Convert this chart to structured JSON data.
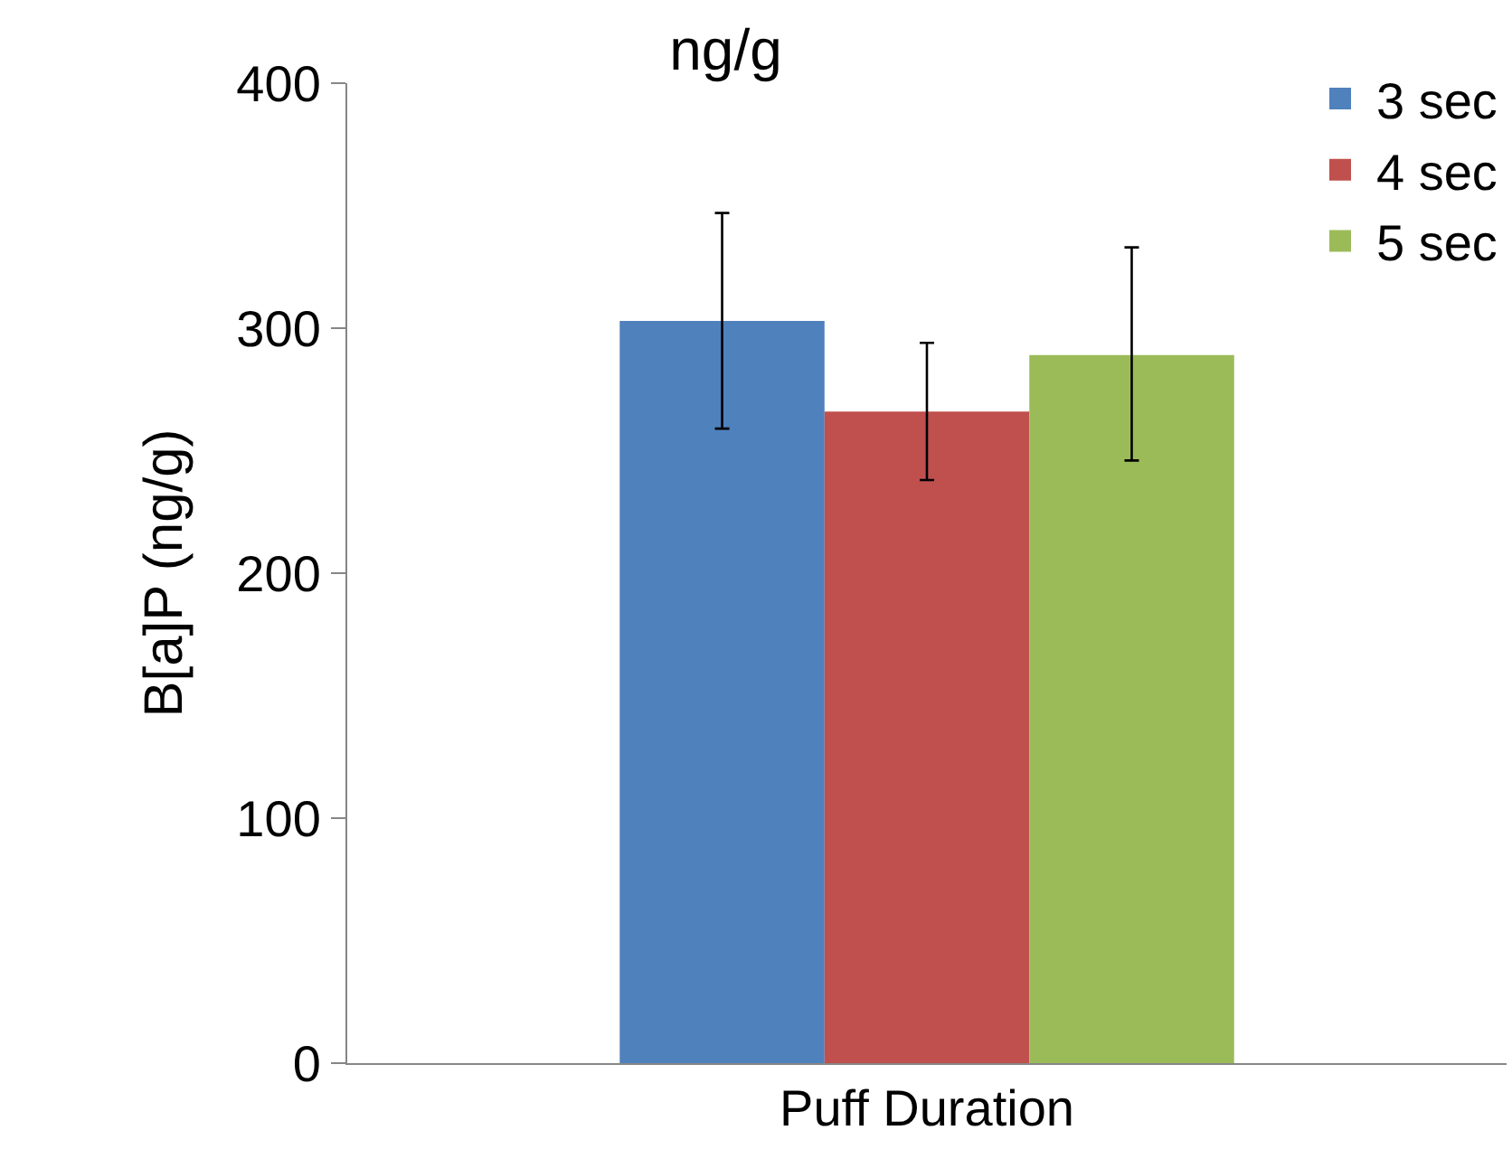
{
  "chart_data": {
    "type": "bar",
    "title": "ng/g",
    "ylabel": "B[a]P (ng/g)",
    "categories": [
      "Puff Duration"
    ],
    "series": [
      {
        "name": "3 sec",
        "color": "#4f81bd",
        "values": [
          303
        ],
        "errors": [
          [
            259,
            347
          ]
        ]
      },
      {
        "name": "4 sec",
        "color": "#c0504d",
        "values": [
          266
        ],
        "errors": [
          [
            238,
            294
          ]
        ]
      },
      {
        "name": "5 sec",
        "color": "#9bbb59",
        "values": [
          289
        ],
        "errors": [
          [
            246,
            333
          ]
        ]
      }
    ],
    "ylim": [
      0,
      400
    ],
    "yticks": [
      0,
      100,
      200,
      300,
      400
    ],
    "grid": false,
    "legend": "top right"
  }
}
